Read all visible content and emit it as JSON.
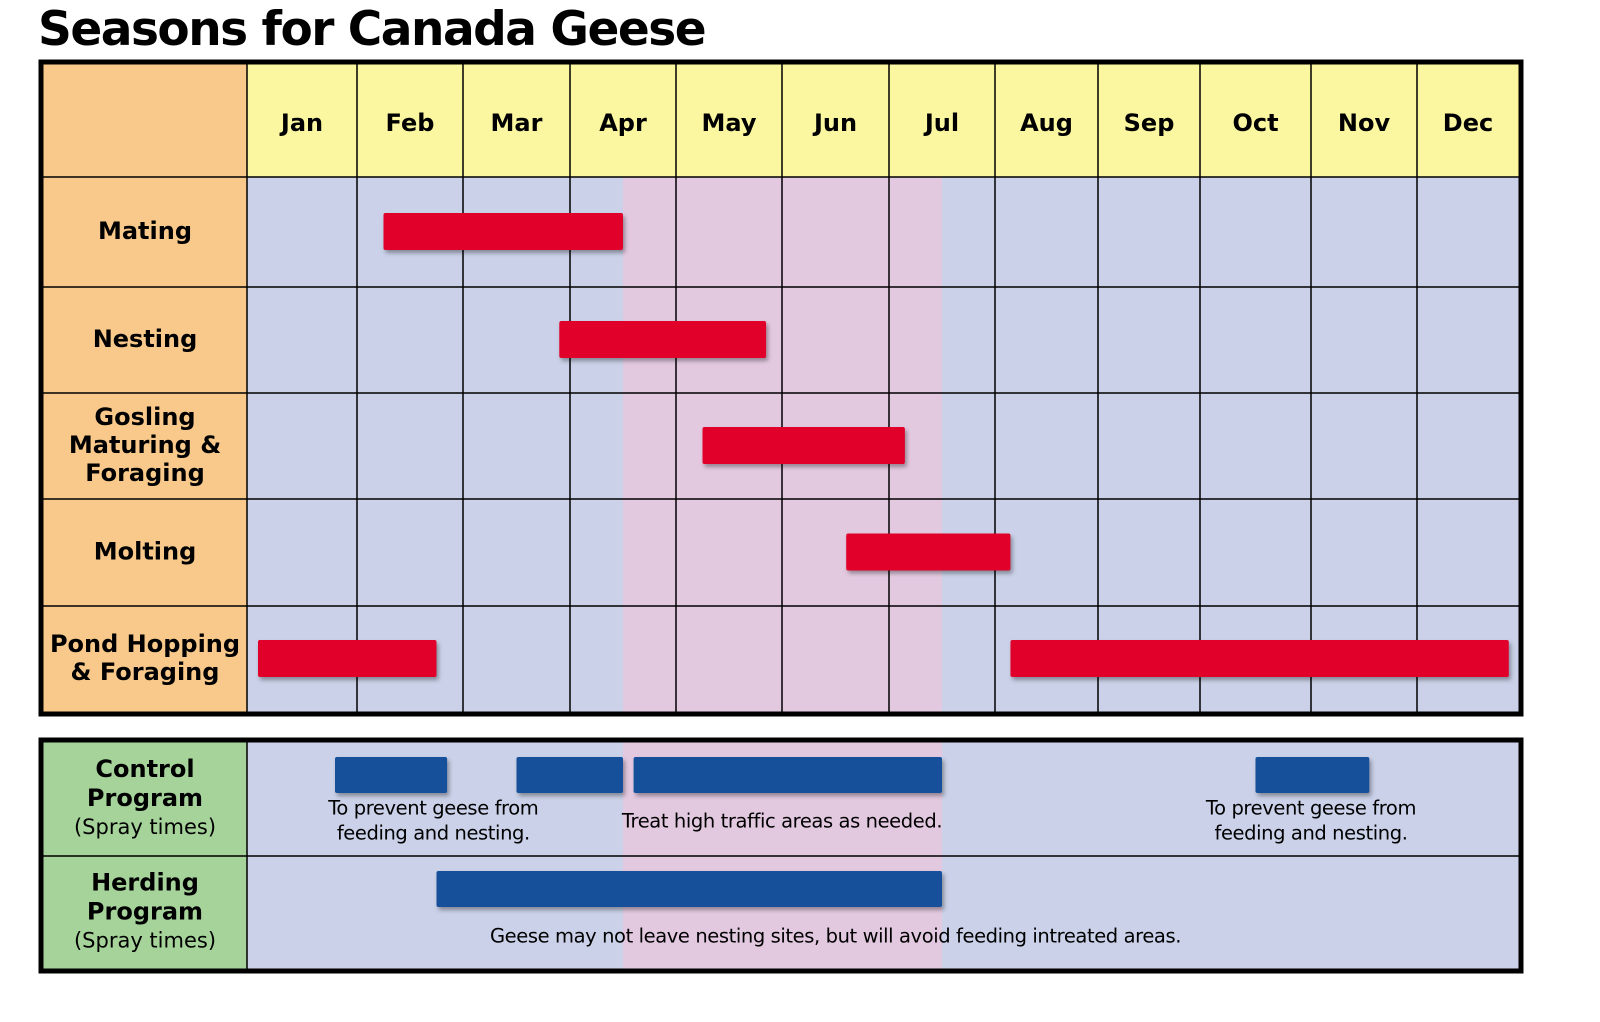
{
  "title": "Seasons for Canada Geese",
  "chart_data": {
    "type": "gantt",
    "months": [
      "Jan",
      "Feb",
      "Mar",
      "Apr",
      "May",
      "Jun",
      "Jul",
      "Aug",
      "Sep",
      "Oct",
      "Nov",
      "Dec"
    ],
    "highlight_period": {
      "start": 3.5,
      "end": 6.5
    },
    "activities": [
      {
        "label": [
          "Mating"
        ],
        "bars": [
          {
            "start": 1.25,
            "end": 3.5
          }
        ]
      },
      {
        "label": [
          "Nesting"
        ],
        "bars": [
          {
            "start": 2.9,
            "end": 4.85
          }
        ]
      },
      {
        "label": [
          "Gosling",
          "Maturing &",
          "Foraging"
        ],
        "bars": [
          {
            "start": 4.25,
            "end": 6.15
          }
        ]
      },
      {
        "label": [
          "Molting"
        ],
        "bars": [
          {
            "start": 5.6,
            "end": 7.15
          }
        ]
      },
      {
        "label": [
          "Pond Hopping",
          "& Foraging"
        ],
        "bars": [
          {
            "start": 0.1,
            "end": 1.75
          },
          {
            "start": 7.15,
            "end": 11.9
          }
        ]
      }
    ],
    "programs": [
      {
        "label": [
          "Control",
          "Program"
        ],
        "sub": "(Spray times)",
        "bars": [
          {
            "start": 0.8,
            "end": 1.85
          },
          {
            "start": 2.5,
            "end": 3.5
          },
          {
            "start": 3.6,
            "end": 6.5
          },
          {
            "start": 9.5,
            "end": 10.55
          }
        ],
        "notes": [
          {
            "lines": [
              "To prevent geese from",
              "feeding and nesting."
            ],
            "center": 1.72
          },
          {
            "lines": [
              "Treat high traffic areas as needed."
            ],
            "center": 5.0
          },
          {
            "lines": [
              "To prevent geese from",
              "feeding and nesting."
            ],
            "center": 10.0
          }
        ]
      },
      {
        "label": [
          "Herding",
          "Program"
        ],
        "sub": "(Spray times)",
        "bars": [
          {
            "start": 1.75,
            "end": 6.5
          }
        ],
        "notes": [
          {
            "lines": [
              "Geese may not leave nesting sites, but will avoid feeding intreated areas."
            ],
            "center": 5.5
          }
        ]
      }
    ],
    "colors": {
      "header_bg": "#fbf7a0",
      "label_bg": "#f8c98a",
      "program_label_bg": "#a5d39a",
      "grid_bg": "#cad1e8",
      "highlight_bg": "#e3c9e0",
      "activity_bar": "#e0002a",
      "program_bar": "#124f9a",
      "border": "#000000"
    }
  }
}
